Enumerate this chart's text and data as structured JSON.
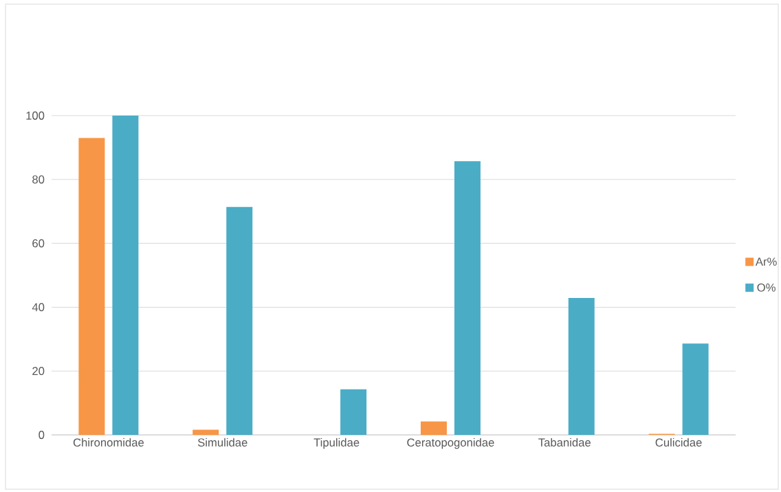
{
  "chart_data": {
    "type": "bar",
    "categories": [
      "Chironomidae",
      "Simulidae",
      "Tipulidae",
      "Ceratopogonidae",
      "Tabanidae",
      "Culicidae"
    ],
    "series": [
      {
        "name": "Ar%",
        "color": "#f79646",
        "values": [
          93.0,
          1.6,
          null,
          4.2,
          null,
          0.3
        ]
      },
      {
        "name": "O%",
        "color": "#4bacc6",
        "values": [
          100,
          71.4,
          14.3,
          85.7,
          42.9,
          28.6
        ]
      }
    ],
    "ylim": [
      0,
      100
    ],
    "yticks": [
      0,
      20,
      40,
      60,
      80,
      100
    ],
    "grid": "y",
    "legend": "right"
  }
}
